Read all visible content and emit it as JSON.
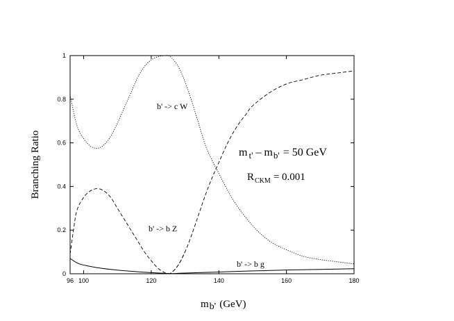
{
  "chart_data": {
    "type": "line",
    "xlabel": "m",
    "xlabel_sub": "b'",
    "xlabel_unit": "(GeV)",
    "ylabel": "Branching Ratio",
    "xlim": [
      96,
      180
    ],
    "ylim": [
      0,
      1
    ],
    "x_ticks": [
      96,
      100,
      120,
      140,
      160,
      180
    ],
    "y_ticks": [
      0,
      0.2,
      0.4,
      0.6,
      0.8,
      1
    ],
    "x_tick_labels": [
      "96",
      "100",
      "120",
      "140",
      "160",
      "180"
    ],
    "y_tick_labels": [
      "0",
      "0.2",
      "0.4",
      "0.6",
      "0.8",
      "1"
    ],
    "series": [
      {
        "name": "b' -> c W",
        "style": "dotted",
        "x": [
          96,
          98,
          100,
          102,
          104,
          106,
          108,
          110,
          112,
          114,
          116,
          118,
          120,
          122,
          124,
          125,
          126,
          128,
          130,
          132,
          134,
          136,
          138,
          140,
          142,
          145,
          150,
          155,
          160,
          165,
          170,
          175,
          180
        ],
        "y": [
          0.82,
          0.68,
          0.62,
          0.585,
          0.575,
          0.59,
          0.63,
          0.69,
          0.76,
          0.83,
          0.9,
          0.95,
          0.98,
          0.995,
          1.0,
          1.0,
          0.99,
          0.95,
          0.88,
          0.79,
          0.69,
          0.59,
          0.52,
          0.46,
          0.4,
          0.32,
          0.22,
          0.15,
          0.11,
          0.08,
          0.065,
          0.055,
          0.045
        ]
      },
      {
        "name": "b' -> b Z",
        "style": "dashed",
        "x": [
          96,
          97,
          98,
          100,
          102,
          104,
          106,
          108,
          110,
          112,
          114,
          116,
          118,
          120,
          122,
          124,
          125,
          126,
          128,
          130
        ],
        "y": [
          0.09,
          0.2,
          0.29,
          0.35,
          0.38,
          0.39,
          0.38,
          0.35,
          0.3,
          0.25,
          0.2,
          0.15,
          0.1,
          0.06,
          0.025,
          0.005,
          0.0,
          0.005,
          0.04,
          0.1
        ]
      },
      {
        "name": "b' -> b g",
        "style": "solid",
        "x": [
          96,
          98,
          100,
          104,
          108,
          112,
          116,
          120,
          124,
          126,
          130,
          140,
          150,
          160,
          170,
          180
        ],
        "y": [
          0.07,
          0.05,
          0.04,
          0.028,
          0.02,
          0.014,
          0.009,
          0.005,
          0.002,
          0.001,
          0.003,
          0.008,
          0.013,
          0.017,
          0.02,
          0.023
        ]
      },
      {
        "name": "",
        "style": "dashed",
        "x": [
          125,
          126,
          128,
          130,
          132,
          134,
          136,
          138,
          140,
          142,
          144,
          146,
          148,
          150,
          155,
          160,
          165,
          170,
          175,
          180
        ],
        "y": [
          0.0,
          0.005,
          0.04,
          0.1,
          0.18,
          0.27,
          0.36,
          0.44,
          0.51,
          0.58,
          0.64,
          0.69,
          0.73,
          0.77,
          0.83,
          0.87,
          0.89,
          0.91,
          0.92,
          0.93
        ]
      }
    ],
    "curve_labels": [
      "b' -> c W",
      "b' -> b Z",
      "b' -> b g"
    ],
    "annotations": {
      "mass_diff_m1": "m",
      "mass_diff_sub1": "t'",
      "mass_diff_minus": "– m",
      "mass_diff_sub2": "b'",
      "mass_diff_rest": "= 50 GeV",
      "rckm_r": "R",
      "rckm_sub": "CKM",
      "rckm_rest": "= 0.001"
    },
    "grid": false,
    "legend": "none"
  },
  "colors": {
    "line": "#000000",
    "background": "#ffffff"
  }
}
